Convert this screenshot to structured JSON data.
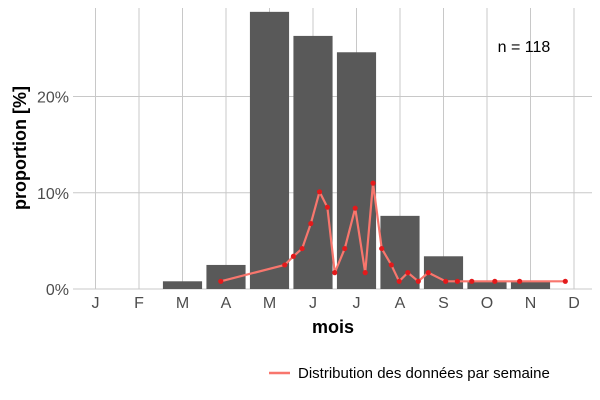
{
  "chart_data": {
    "type": "bar",
    "xlabel": "mois",
    "ylabel": "proportion [%]",
    "annotation": "n = 118",
    "categories": [
      "J",
      "F",
      "M",
      "A",
      "M",
      "J",
      "J",
      "A",
      "S",
      "O",
      "N",
      "D"
    ],
    "values": [
      0,
      0,
      0.8,
      2.5,
      28.8,
      26.3,
      24.6,
      7.6,
      3.4,
      0.8,
      0.8,
      0
    ],
    "yticks": [
      0,
      10,
      20
    ],
    "ytick_labels": [
      "0%",
      "10%",
      "20%"
    ],
    "ylim": [
      0,
      29.2
    ],
    "grid": true,
    "bar_color": "#595959",
    "series": [
      {
        "name": "Distribution des données par semaine",
        "type": "line",
        "color": "#f8766d",
        "point_color": "#e31a1c",
        "x": [
          2.88,
          4.35,
          4.55,
          4.75,
          4.95,
          5.15,
          5.33,
          5.5,
          5.73,
          5.97,
          6.2,
          6.38,
          6.58,
          6.8,
          6.98,
          7.18,
          7.42,
          7.65,
          8.05,
          8.32,
          8.65,
          9.18,
          9.75,
          10.8
        ],
        "y": [
          0.8,
          2.5,
          3.4,
          4.2,
          6.8,
          10.1,
          8.5,
          1.7,
          4.2,
          8.4,
          1.7,
          11.0,
          4.2,
          2.5,
          0.8,
          1.7,
          0.8,
          1.7,
          0.8,
          0.8,
          0.8,
          0.8,
          0.8,
          0.8
        ]
      }
    ],
    "legend_position": "bottom-right"
  },
  "colors": {
    "grid": "#c8c8c8",
    "text": "#4d4d4d"
  }
}
